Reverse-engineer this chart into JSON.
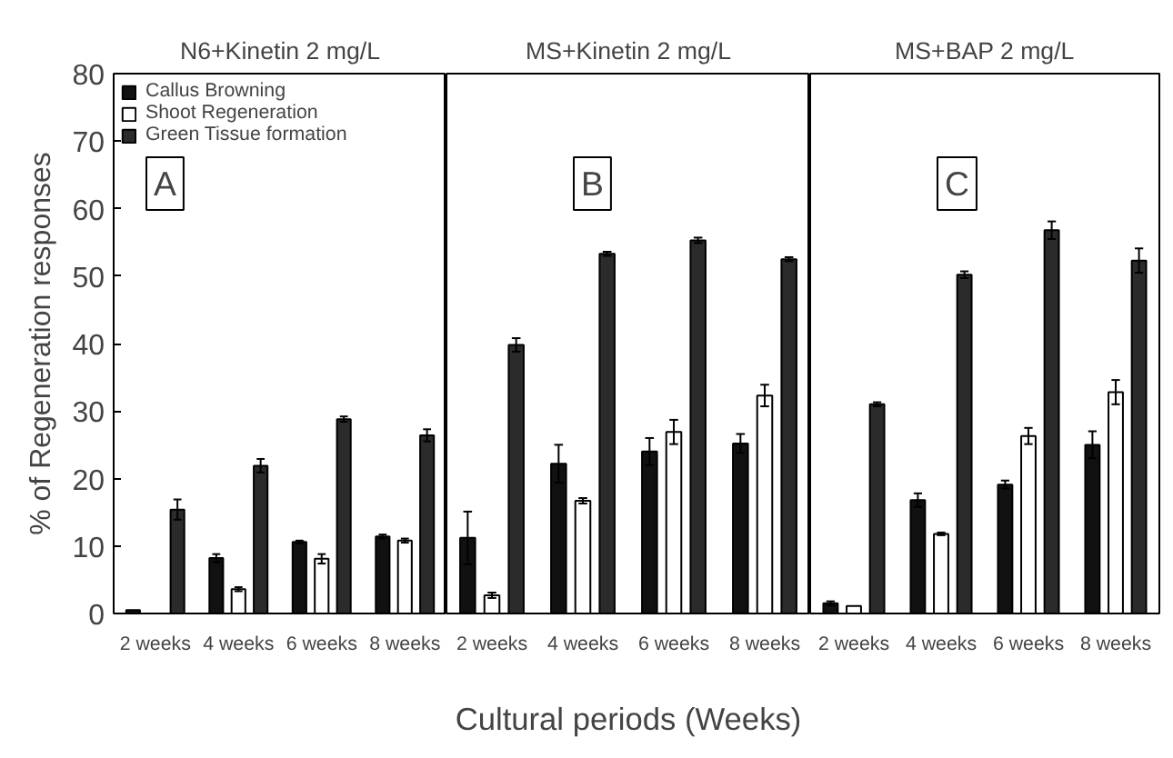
{
  "chart_data": [
    {
      "type": "bar",
      "title": "N6+Kinetin 2 mg/L",
      "ylabel": "% of Regeneration responses",
      "categories": [
        "2 weeks",
        "4 weeks",
        "6 weeks",
        "8 weeks"
      ],
      "ylim": [
        0,
        80
      ],
      "yticks": [
        0,
        10,
        20,
        30,
        40,
        50,
        60,
        70,
        80
      ],
      "legend": "top left",
      "annotations": [
        "A"
      ],
      "series": [
        {
          "name": "Callus Browning",
          "color": "#111111",
          "values": [
            0.5,
            8.2,
            10.6,
            11.4
          ],
          "errors": [
            null,
            0.6,
            0.2,
            0.3
          ]
        },
        {
          "name": "Shoot Regeneration",
          "color": "#ffffff",
          "values": [
            null,
            3.6,
            8.1,
            10.8
          ],
          "errors": [
            null,
            0.3,
            0.7,
            0.3
          ]
        },
        {
          "name": "Green Tissue formation",
          "color": "#2b2b2b",
          "values": [
            15.4,
            21.9,
            28.8,
            26.4
          ],
          "errors": [
            1.5,
            1,
            0.4,
            0.9
          ]
        }
      ]
    },
    {
      "type": "bar",
      "title": "MS+Kinetin 2 mg/L",
      "xlabel": "Cultural periods (Weeks)",
      "categories": [
        "2 weeks",
        "4 weeks",
        "6 weeks",
        "8 weeks"
      ],
      "ylim": [
        0,
        80
      ],
      "yticks": [
        0,
        10,
        20,
        30,
        40,
        50,
        60,
        70,
        80
      ],
      "tick_labels": "x",
      "annotations": [
        "B"
      ],
      "series": [
        {
          "color": "#111111",
          "values": [
            11.2,
            22.2,
            24,
            25.2
          ],
          "errors": [
            3.9,
            2.8,
            2,
            1.4
          ]
        },
        {
          "color": "#ffffff",
          "values": [
            2.7,
            16.7,
            26.9,
            32.3
          ],
          "errors": [
            0.4,
            0.4,
            1.8,
            1.6
          ]
        },
        {
          "color": "#2b2b2b",
          "values": [
            39.8,
            53.3,
            55.3,
            52.5
          ],
          "errors": [
            1,
            0.3,
            0.4,
            0.3
          ]
        }
      ]
    },
    {
      "type": "bar",
      "title": "MS+BAP 2 mg/L",
      "categories": [
        "2 weeks",
        "4 weeks",
        "6 weeks",
        "8 weeks"
      ],
      "ylim": [
        0,
        80
      ],
      "yticks": [
        0,
        10,
        20,
        30,
        40,
        50,
        60,
        70,
        80
      ],
      "tick_labels": "x",
      "annotations": [
        "C"
      ],
      "series": [
        {
          "color": "#111111",
          "values": [
            1.5,
            16.8,
            19.1,
            25
          ],
          "errors": [
            0.3,
            1,
            0.6,
            2
          ]
        },
        {
          "color": "#ffffff",
          "values": [
            1.1,
            11.8,
            26.3,
            32.8
          ],
          "errors": [
            null,
            0.2,
            1.2,
            1.8
          ]
        },
        {
          "color": "#2b2b2b",
          "values": [
            31,
            50.2,
            56.8,
            52.3
          ],
          "errors": [
            0.3,
            0.5,
            1.3,
            1.8
          ]
        }
      ]
    }
  ]
}
